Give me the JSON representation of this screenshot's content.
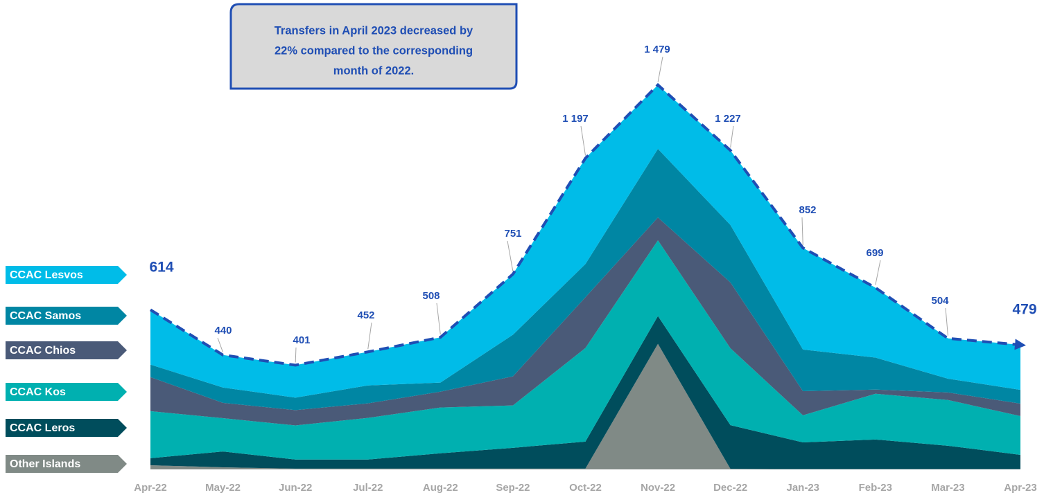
{
  "chart_data": {
    "type": "stacked-area",
    "annotation": [
      "Transfers in April 2023 decreased by",
      "22% compared to the corresponding",
      "month of 2022."
    ],
    "categories": [
      "Apr-22",
      "May-22",
      "Jun-22",
      "Jul-22",
      "Aug-22",
      "Sep-22",
      "Oct-22",
      "Nov-22",
      "Dec-22",
      "Jan-23",
      "Feb-23",
      "Mar-23",
      "Apr-23"
    ],
    "series": [
      {
        "name": "Other Islands",
        "color": "#808a86",
        "values": [
          16,
          8,
          3,
          3,
          3,
          3,
          3,
          483,
          2,
          1,
          1,
          1,
          1
        ]
      },
      {
        "name": "CCAC Leros",
        "color": "#004d5c",
        "values": [
          27,
          61,
          35,
          35,
          59,
          80,
          104,
          107,
          168,
          103,
          114,
          90,
          55
        ]
      },
      {
        "name": "CCAC Kos",
        "color": "#00b0b0",
        "values": [
          181,
          128,
          131,
          160,
          176,
          163,
          360,
          291,
          296,
          104,
          176,
          176,
          149
        ]
      },
      {
        "name": "CCAC Chios",
        "color": "#4a5a78",
        "values": [
          131,
          59,
          59,
          56,
          61,
          112,
          195,
          88,
          253,
          93,
          16,
          29,
          48
        ]
      },
      {
        "name": "CCAC Samos",
        "color": "#0086a3",
        "values": [
          48,
          59,
          48,
          69,
          35,
          160,
          128,
          264,
          221,
          160,
          123,
          53,
          53
        ]
      },
      {
        "name": "CCAC Lesvos",
        "color": "#00bce8",
        "values": [
          211,
          125,
          125,
          129,
          174,
          233,
          407,
          246,
          287,
          391,
          269,
          155,
          173
        ]
      }
    ],
    "totals": [
      614,
      440,
      401,
      452,
      508,
      751,
      1197,
      1479,
      1227,
      852,
      699,
      504,
      479
    ],
    "total_labels": [
      "614",
      "440",
      "401",
      "452",
      "508",
      "751",
      "1 197",
      "1 479",
      "1 227",
      "852",
      "699",
      "504",
      "479"
    ],
    "total_line_color": "#1f4eb4"
  }
}
